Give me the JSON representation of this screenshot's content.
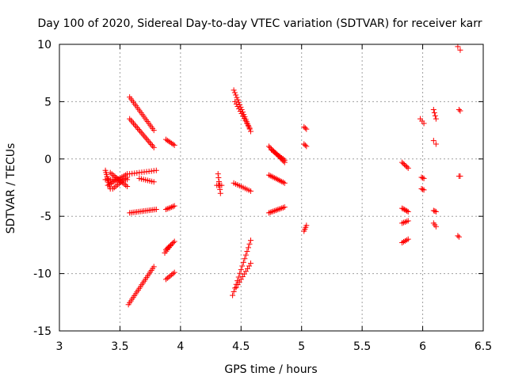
{
  "chart_data": {
    "type": "scatter",
    "title": "Day 100 of 2020, Sidereal Day-to-day VTEC variation (SDTVAR) for receiver karr",
    "xlabel": "GPS time / hours",
    "ylabel": "SDTVAR / TECUs",
    "xlim": [
      3,
      6.5
    ],
    "ylim": [
      -15,
      10
    ],
    "xticks": [
      3,
      3.5,
      4,
      4.5,
      5,
      5.5,
      6,
      6.5
    ],
    "yticks": [
      -15,
      -10,
      -5,
      0,
      5,
      10
    ],
    "xtick_labels": [
      "3",
      "3.5",
      "4",
      "4.5",
      "5",
      "5.5",
      "6",
      "6.5"
    ],
    "ytick_labels": [
      "-15",
      "-10",
      "-5",
      "0",
      "5",
      "10"
    ],
    "grid": true,
    "marker": "+",
    "color": "#ff0000",
    "segments": [
      {
        "x": [
          3.38,
          3.42
        ],
        "y": [
          -1.0,
          -2.6
        ],
        "n": 10
      },
      {
        "x": [
          3.38,
          3.56
        ],
        "y": [
          -1.8,
          -1.8
        ],
        "n": 14
      },
      {
        "x": [
          3.4,
          3.56
        ],
        "y": [
          -2.3,
          -1.3
        ],
        "n": 12
      },
      {
        "x": [
          3.42,
          3.56
        ],
        "y": [
          -1.2,
          -2.4
        ],
        "n": 12
      },
      {
        "x": [
          3.44,
          3.56
        ],
        "y": [
          -2.6,
          -1.6
        ],
        "n": 10
      },
      {
        "x": [
          3.58,
          3.78
        ],
        "y": [
          5.4,
          2.5
        ],
        "n": 20
      },
      {
        "x": [
          3.58,
          3.78
        ],
        "y": [
          3.5,
          1.0
        ],
        "n": 20
      },
      {
        "x": [
          3.58,
          3.8
        ],
        "y": [
          -1.3,
          -1.0
        ],
        "n": 12
      },
      {
        "x": [
          3.66,
          3.78
        ],
        "y": [
          -1.7,
          -2.0
        ],
        "n": 8
      },
      {
        "x": [
          3.58,
          3.8
        ],
        "y": [
          -4.7,
          -4.4
        ],
        "n": 16
      },
      {
        "x": [
          3.57,
          3.78
        ],
        "y": [
          -12.7,
          -9.4
        ],
        "n": 22
      },
      {
        "x": [
          3.88,
          3.95
        ],
        "y": [
          1.7,
          1.2
        ],
        "n": 7
      },
      {
        "x": [
          3.88,
          3.95
        ],
        "y": [
          -4.4,
          -4.1
        ],
        "n": 7
      },
      {
        "x": [
          3.88,
          3.95
        ],
        "y": [
          -7.9,
          -7.2
        ],
        "n": 8
      },
      {
        "x": [
          3.87,
          3.93
        ],
        "y": [
          -8.2,
          -7.4
        ],
        "n": 6
      },
      {
        "x": [
          3.88,
          3.95
        ],
        "y": [
          -10.5,
          -9.9
        ],
        "n": 7
      },
      {
        "x": [
          4.31,
          4.33
        ],
        "y": [
          -1.3,
          -3.0
        ],
        "n": 6
      },
      {
        "x": [
          4.3,
          4.34
        ],
        "y": [
          -2.3,
          -2.3
        ],
        "n": 4
      },
      {
        "x": [
          4.44,
          4.58
        ],
        "y": [
          6.0,
          2.4
        ],
        "n": 18
      },
      {
        "x": [
          4.45,
          4.57
        ],
        "y": [
          5.0,
          2.7
        ],
        "n": 12
      },
      {
        "x": [
          4.44,
          4.58
        ],
        "y": [
          -2.1,
          -2.8
        ],
        "n": 10
      },
      {
        "x": [
          4.43,
          4.58
        ],
        "y": [
          -11.9,
          -7.1
        ],
        "n": 16
      },
      {
        "x": [
          4.46,
          4.58
        ],
        "y": [
          -11.2,
          -9.1
        ],
        "n": 10
      },
      {
        "x": [
          4.73,
          4.86
        ],
        "y": [
          1.1,
          -0.3
        ],
        "n": 14
      },
      {
        "x": [
          4.75,
          4.86
        ],
        "y": [
          0.8,
          -0.1
        ],
        "n": 10
      },
      {
        "x": [
          4.73,
          4.86
        ],
        "y": [
          -1.4,
          -2.1
        ],
        "n": 12
      },
      {
        "x": [
          4.73,
          4.86
        ],
        "y": [
          -4.7,
          -4.2
        ],
        "n": 12
      },
      {
        "x": [
          5.02,
          5.04
        ],
        "y": [
          2.8,
          2.6
        ],
        "n": 3
      },
      {
        "x": [
          5.02,
          5.04
        ],
        "y": [
          1.3,
          1.1
        ],
        "n": 3
      },
      {
        "x": [
          5.02,
          5.04
        ],
        "y": [
          -6.3,
          -5.8
        ],
        "n": 4
      },
      {
        "x": [
          5.83,
          5.88
        ],
        "y": [
          -0.3,
          -0.8
        ],
        "n": 6
      },
      {
        "x": [
          5.83,
          5.88
        ],
        "y": [
          -4.3,
          -4.6
        ],
        "n": 6
      },
      {
        "x": [
          5.83,
          5.88
        ],
        "y": [
          -5.6,
          -5.4
        ],
        "n": 5
      },
      {
        "x": [
          5.83,
          5.88
        ],
        "y": [
          -7.3,
          -7.0
        ],
        "n": 5
      },
      {
        "x": [
          5.98,
          6.01
        ],
        "y": [
          3.5,
          3.1
        ],
        "n": 3
      },
      {
        "x": [
          5.99,
          6.01
        ],
        "y": [
          -1.6,
          -1.7
        ],
        "n": 3
      },
      {
        "x": [
          5.99,
          6.01
        ],
        "y": [
          -2.6,
          -2.7
        ],
        "n": 3
      },
      {
        "x": [
          6.09,
          6.11
        ],
        "y": [
          4.3,
          3.5
        ],
        "n": 4
      },
      {
        "x": [
          6.09,
          6.11
        ],
        "y": [
          1.6,
          1.3
        ],
        "n": 2
      },
      {
        "x": [
          6.09,
          6.11
        ],
        "y": [
          -4.5,
          -4.6
        ],
        "n": 3
      },
      {
        "x": [
          6.09,
          6.11
        ],
        "y": [
          -5.6,
          -5.9
        ],
        "n": 3
      },
      {
        "x": [
          6.29,
          6.31
        ],
        "y": [
          9.8,
          9.5
        ],
        "n": 2
      },
      {
        "x": [
          6.3,
          6.31
        ],
        "y": [
          4.3,
          4.2
        ],
        "n": 2
      },
      {
        "x": [
          6.3,
          6.31
        ],
        "y": [
          -1.5,
          -1.5
        ],
        "n": 2
      },
      {
        "x": [
          6.29,
          6.3
        ],
        "y": [
          -6.7,
          -6.8
        ],
        "n": 2
      }
    ]
  }
}
